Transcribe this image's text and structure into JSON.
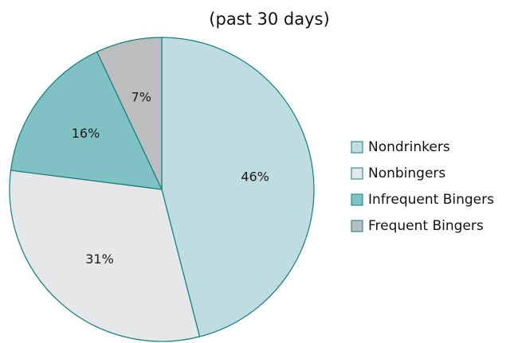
{
  "chart_data": {
    "type": "pie",
    "title": "(past 30 days)",
    "legend_position": "right",
    "categories": [
      "Nondrinkers",
      "Nonbingers",
      "Infrequent Bingers",
      "Frequent Bingers"
    ],
    "values": [
      46,
      31,
      16,
      7
    ],
    "value_labels": [
      "46%",
      "31%",
      "16%",
      "7%"
    ],
    "colors": [
      "#bfdde0",
      "#e6e7e8",
      "#80c1c3",
      "#bcbdbf"
    ],
    "edge_color": "#137e80"
  }
}
